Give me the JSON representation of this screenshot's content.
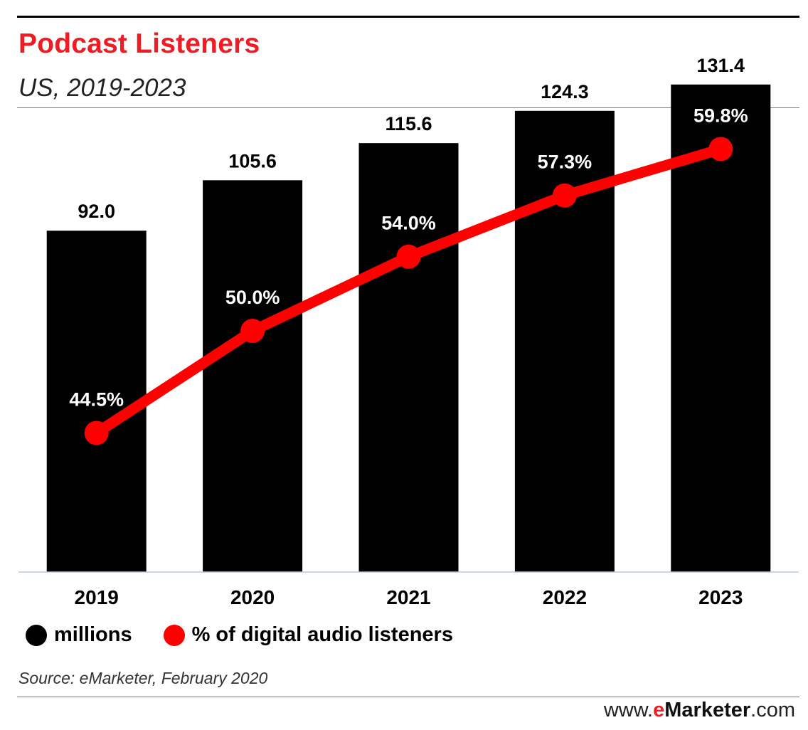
{
  "header": {
    "title": "Podcast Listeners",
    "subtitle": "US, 2019-2023"
  },
  "chart_data": {
    "type": "bar",
    "title": "Podcast Listeners",
    "subtitle": "US, 2019-2023",
    "categories": [
      "2019",
      "2020",
      "2021",
      "2022",
      "2023"
    ],
    "series": [
      {
        "name": "millions",
        "kind": "bar",
        "color": "#000000",
        "values": [
          92.0,
          105.6,
          115.6,
          124.3,
          131.4
        ],
        "labels": [
          "92.0",
          "105.6",
          "115.6",
          "124.3",
          "131.4"
        ]
      },
      {
        "name": "% of digital audio listeners",
        "kind": "line",
        "color": "#ff0000",
        "values": [
          44.5,
          50.0,
          54.0,
          57.3,
          59.8
        ],
        "labels": [
          "44.5%",
          "50.0%",
          "54.0%",
          "57.3%",
          "59.8%"
        ]
      }
    ],
    "xlabel": "",
    "ylabel": "",
    "ylim_bar": [
      0,
      135
    ],
    "ylim_line": [
      37,
      64
    ],
    "legend": "bottom-left"
  },
  "legend": {
    "millions": "millions",
    "pct": "% of digital audio listeners"
  },
  "footer": {
    "source": "Source: eMarketer, February 2020",
    "brand_prefix": "www.",
    "brand_e": "e",
    "brand_name": "Marketer",
    "brand_suffix": ".com"
  },
  "colors": {
    "accent": "#ee1c25",
    "bar": "#000000",
    "line": "#ff0000"
  }
}
